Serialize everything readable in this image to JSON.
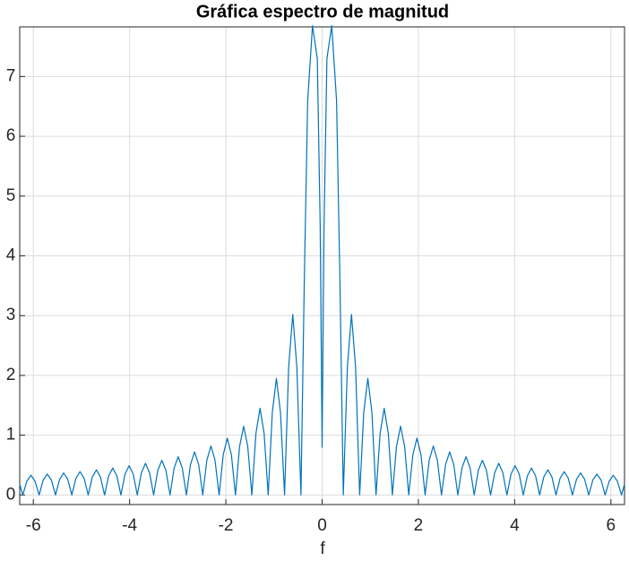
{
  "chart_data": {
    "type": "line",
    "title": "Gráfica espectro de magnitud",
    "x_label": "f",
    "color": "#0072bd",
    "xlim": [
      -6.2832,
      6.2832
    ],
    "ylim": [
      -0.16,
      7.83
    ],
    "xticks": [
      -6,
      -4,
      -2,
      0,
      2,
      4,
      6
    ],
    "yticks": [
      0,
      1,
      2,
      3,
      4,
      5,
      6,
      7
    ],
    "grid": true,
    "x": [
      -6.2832,
      -6.22,
      -6.135,
      -6.05,
      -5.965,
      -5.88,
      -5.795,
      -5.71,
      -5.625,
      -5.54,
      -5.455,
      -5.37,
      -5.285,
      -5.2,
      -5.115,
      -5.03,
      -4.945,
      -4.86,
      -4.775,
      -4.69,
      -4.605,
      -4.52,
      -4.435,
      -4.35,
      -4.265,
      -4.18,
      -4.095,
      -4.01,
      -3.925,
      -3.84,
      -3.755,
      -3.67,
      -3.585,
      -3.5,
      -3.415,
      -3.33,
      -3.245,
      -3.16,
      -3.075,
      -2.99,
      -2.905,
      -2.82,
      -2.735,
      -2.65,
      -2.565,
      -2.48,
      -2.395,
      -2.31,
      -2.225,
      -2.14,
      -2.055,
      -1.97,
      -1.885,
      -1.8,
      -1.715,
      -1.63,
      -1.545,
      -1.46,
      -1.375,
      -1.29,
      -1.205,
      -1.12,
      -1.035,
      -0.95,
      -0.865,
      -0.78,
      -0.695,
      -0.61,
      -0.525,
      -0.44,
      -0.37,
      -0.3,
      -0.2,
      -0.1,
      -0.04,
      0,
      0.04,
      0.1,
      0.2,
      0.3,
      0.37,
      0.44,
      0.525,
      0.61,
      0.695,
      0.78,
      0.865,
      0.95,
      1.035,
      1.12,
      1.205,
      1.29,
      1.375,
      1.46,
      1.545,
      1.63,
      1.715,
      1.8,
      1.885,
      1.97,
      2.055,
      2.14,
      2.225,
      2.31,
      2.395,
      2.48,
      2.565,
      2.65,
      2.735,
      2.82,
      2.905,
      2.99,
      3.075,
      3.16,
      3.245,
      3.33,
      3.415,
      3.5,
      3.585,
      3.67,
      3.755,
      3.84,
      3.925,
      4.01,
      4.095,
      4.18,
      4.265,
      4.35,
      4.435,
      4.52,
      4.605,
      4.69,
      4.775,
      4.86,
      4.945,
      5.03,
      5.115,
      5.2,
      5.285,
      5.37,
      5.455,
      5.54,
      5.625,
      5.71,
      5.795,
      5.88,
      5.965,
      6.05,
      6.135,
      6.22,
      6.2832
    ],
    "values": [
      0.18,
      0,
      0.23,
      0.33,
      0.23,
      0,
      0.25,
      0.35,
      0.25,
      0,
      0.26,
      0.37,
      0.26,
      0,
      0.28,
      0.39,
      0.28,
      0,
      0.3,
      0.42,
      0.3,
      0,
      0.32,
      0.45,
      0.32,
      0,
      0.35,
      0.49,
      0.35,
      0,
      0.37,
      0.53,
      0.37,
      0,
      0.41,
      0.58,
      0.41,
      0,
      0.45,
      0.64,
      0.45,
      0,
      0.51,
      0.72,
      0.51,
      0,
      0.58,
      0.82,
      0.58,
      0,
      0.67,
      0.95,
      0.67,
      0,
      0.81,
      1.15,
      0.81,
      0,
      1.03,
      1.45,
      1.03,
      0,
      1.38,
      1.95,
      1.38,
      0,
      2.14,
      3.02,
      2.14,
      0,
      3.6,
      6.6,
      7.85,
      7.3,
      4.5,
      0.8,
      4.5,
      7.3,
      7.85,
      6.6,
      3.6,
      0,
      2.14,
      3.02,
      2.14,
      0,
      1.38,
      1.95,
      1.38,
      0,
      1.03,
      1.45,
      1.03,
      0,
      0.81,
      1.15,
      0.81,
      0,
      0.67,
      0.95,
      0.67,
      0,
      0.58,
      0.82,
      0.58,
      0,
      0.51,
      0.72,
      0.51,
      0,
      0.45,
      0.64,
      0.45,
      0,
      0.41,
      0.58,
      0.41,
      0,
      0.37,
      0.53,
      0.37,
      0,
      0.35,
      0.49,
      0.35,
      0,
      0.32,
      0.45,
      0.32,
      0,
      0.3,
      0.42,
      0.3,
      0,
      0.28,
      0.39,
      0.28,
      0,
      0.26,
      0.37,
      0.26,
      0,
      0.25,
      0.35,
      0.25,
      0,
      0.23,
      0.33,
      0.23,
      0,
      0.18
    ]
  }
}
